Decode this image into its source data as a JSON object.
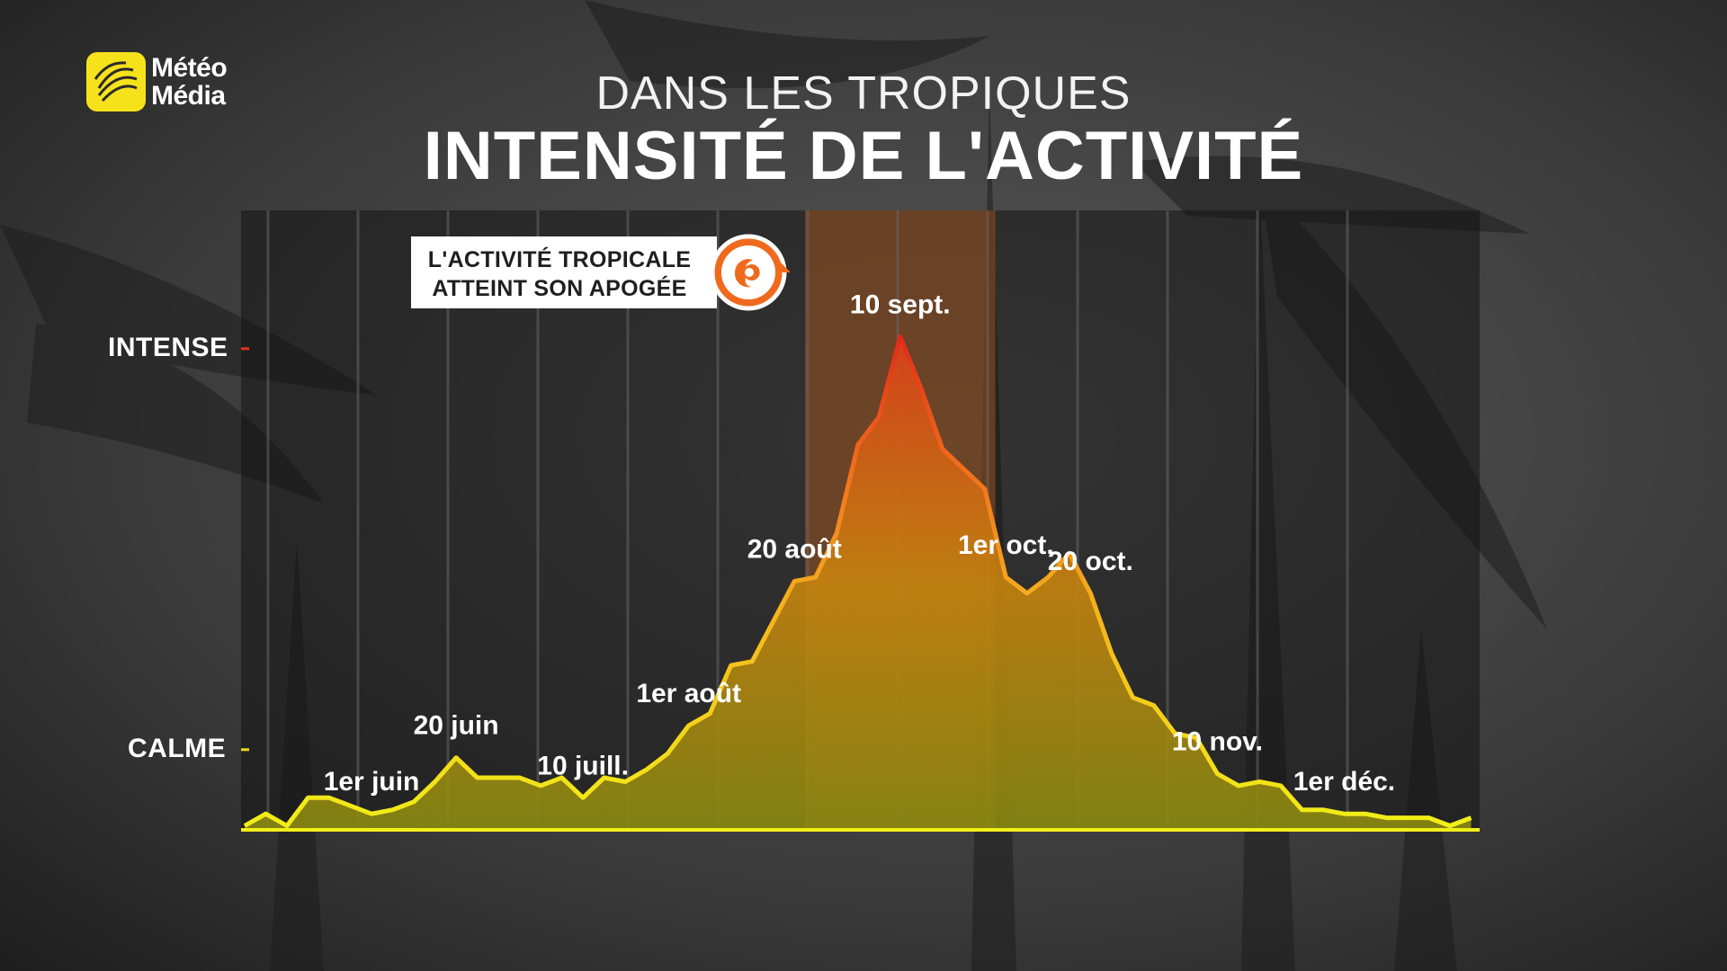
{
  "header": {
    "logo_line1": "Météo",
    "logo_line2": "Média",
    "subtitle": "DANS LES TROPIQUES",
    "title": "INTENSITÉ DE L'ACTIVITÉ"
  },
  "callout": {
    "line1": "L'ACTIVITÉ TROPICALE",
    "line2": "ATTEINT SON APOGÉE",
    "icon": "hurricane-icon"
  },
  "colors": {
    "brand_yellow": "#f6e21b",
    "accent_orange": "#f06a1e",
    "line_low": "#f2ee18",
    "line_high": "#e8311a"
  },
  "chart_data": {
    "type": "area",
    "title": "INTENSITÉ DE L'ACTIVITÉ",
    "y_labels": [
      {
        "text": "CALME",
        "value": 20
      },
      {
        "text": "INTENSE",
        "value": 120
      }
    ],
    "ylim": [
      0,
      150
    ],
    "xlim": [
      0,
      57
    ],
    "grid": "vertical lines only",
    "highlight_range": [
      26.5,
      35.5
    ],
    "values": [
      1,
      4,
      1,
      8,
      8,
      6,
      4,
      5,
      7,
      12,
      18,
      13,
      13,
      13,
      11,
      13,
      8,
      13,
      12,
      15,
      19,
      26,
      29,
      41,
      42,
      52,
      62,
      63,
      74,
      96,
      103,
      123,
      110,
      95,
      90,
      85,
      63,
      59,
      63,
      69,
      59,
      44,
      33,
      31,
      24,
      23,
      14,
      11,
      12,
      11,
      5,
      5,
      4,
      4,
      3,
      3,
      3,
      1,
      3
    ],
    "annotations": [
      {
        "text": "1er juin",
        "x": 6
      },
      {
        "text": "20 juin",
        "x": 10
      },
      {
        "text": "10 juill.",
        "x": 16
      },
      {
        "text": "1er août",
        "x": 21
      },
      {
        "text": "20 août",
        "x": 26
      },
      {
        "text": "10 sept.",
        "x": 31
      },
      {
        "text": "1er oct.",
        "x": 36
      },
      {
        "text": "20 oct.",
        "x": 40
      },
      {
        "text": "10 nov.",
        "x": 46
      },
      {
        "text": "1er déc.",
        "x": 52
      }
    ]
  }
}
